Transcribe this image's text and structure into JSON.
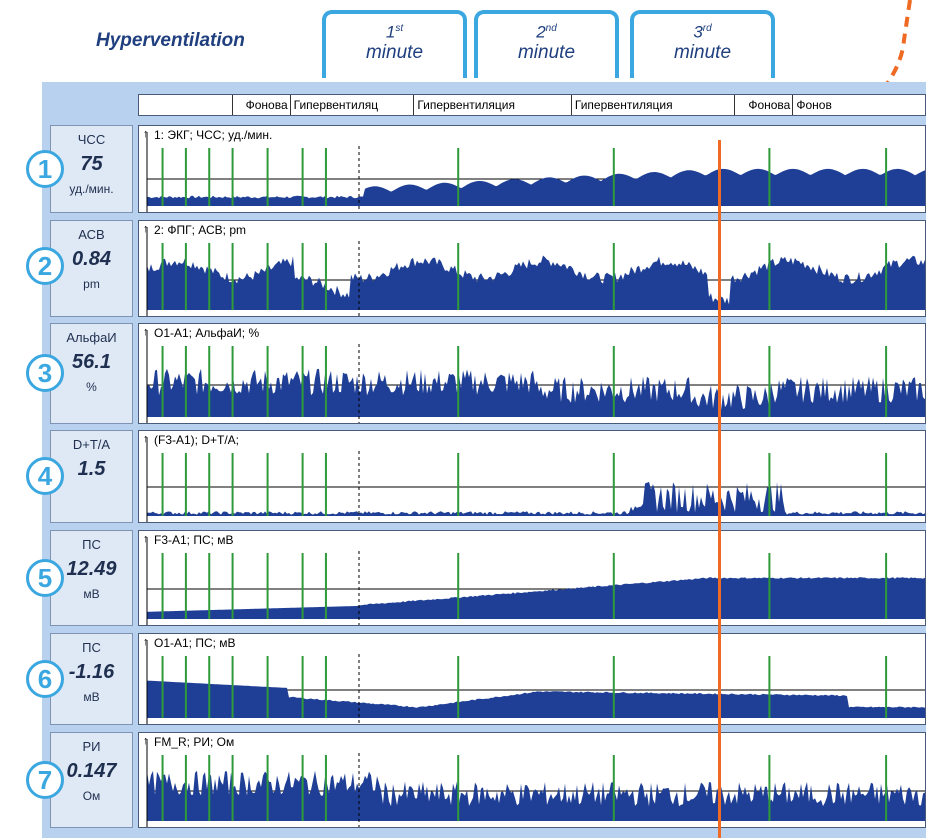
{
  "title": "Hyperventilation",
  "minutes": [
    {
      "num": "1",
      "sup": "st",
      "label": "minute"
    },
    {
      "num": "2",
      "sup": "nd",
      "label": "minute"
    },
    {
      "num": "3",
      "sup": "rd",
      "label": "minute"
    }
  ],
  "header_cells": [
    "",
    "Фонова",
    "Гипервентиляц",
    "Гипервентиляция",
    "Гипервентиляция",
    "Фонова",
    "Фонов"
  ],
  "channels": [
    {
      "id": "1",
      "name": "ЧСС",
      "value": "75",
      "unit": "уд./мин.",
      "title": "1: ЭКГ; ЧСС; уд./мин."
    },
    {
      "id": "2",
      "name": "АСВ",
      "value": "0.84",
      "unit": "pm",
      "title": "2: ФПГ; АСВ; pm"
    },
    {
      "id": "3",
      "name": "АльфаИ",
      "value": "56.1",
      "unit": "%",
      "title": "O1-A1; АльфаИ; %"
    },
    {
      "id": "4",
      "name": "D+T/A",
      "value": "1.5",
      "unit": "",
      "title": "(F3-A1); D+T/A;"
    },
    {
      "id": "5",
      "name": "ПС",
      "value": "12.49",
      "unit": "мВ",
      "title": "F3-A1; ПС; мВ"
    },
    {
      "id": "6",
      "name": "ПС",
      "value": "-1.16",
      "unit": "мВ",
      "title": "O1-A1; ПС; мВ"
    },
    {
      "id": "7",
      "name": "РИ",
      "value": "0.147",
      "unit": "Ом",
      "title": "FM_R; РИ; Ом"
    }
  ],
  "colors": {
    "signal": "#1f3f96",
    "marker": "#2e9a3a",
    "accent": "#3aa7e0",
    "cursor": "#ef6a22",
    "sidebar": "#b7d1ee"
  }
}
